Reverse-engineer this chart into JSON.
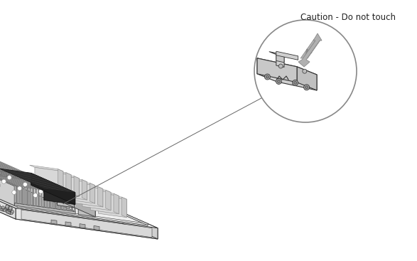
{
  "background_color": "#ffffff",
  "fig_width": 5.87,
  "fig_height": 3.67,
  "dpi": 100,
  "caution_text": "Caution - Do not touch",
  "line_color": "#333333",
  "edge_lw": 0.7
}
